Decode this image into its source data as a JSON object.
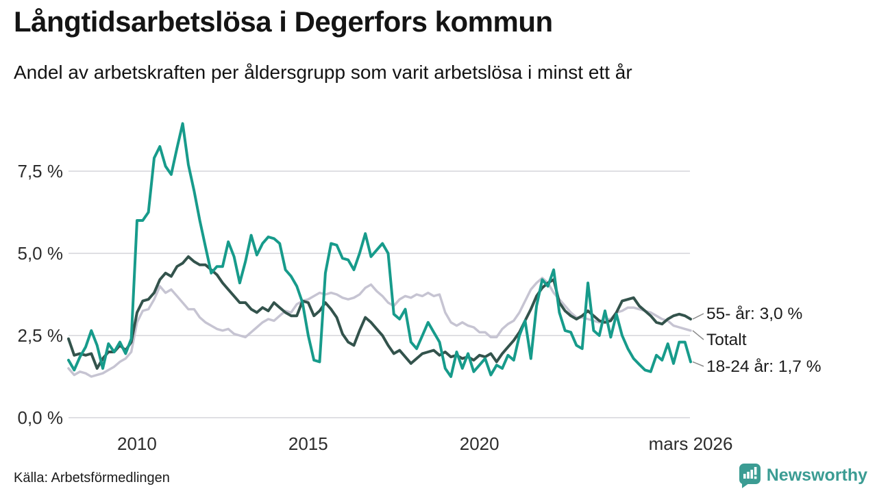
{
  "chart_data": {
    "type": "line",
    "title": "Långtidsarbetslösa i Degerfors kommun",
    "subtitle": "Andel av arbetskraften per åldersgrupp som varit arbetslösa i minst ett år",
    "source": "Källa: Arbetsförmedlingen",
    "x_range": [
      2008,
      2026.17
    ],
    "ylim": [
      0,
      9.2
    ],
    "grid": "horizontal",
    "background": "#ffffff",
    "gridline_color": "#dfdfe3",
    "tick_color": "#2c2c2c",
    "y_ticks": [
      {
        "value": 0,
        "label": "0,0 %"
      },
      {
        "value": 2.5,
        "label": "2,5 %"
      },
      {
        "value": 5,
        "label": "5,0 %"
      },
      {
        "value": 7.5,
        "label": "7,5 %"
      }
    ],
    "x_ticks": [
      {
        "year": 2010,
        "label": "2010"
      },
      {
        "year": 2015,
        "label": "2015"
      },
      {
        "year": 2020,
        "label": "2020"
      },
      {
        "year": 2026.17,
        "label": "mars 2026"
      }
    ],
    "legend_position": "end-of-line labels, right side",
    "series": [
      {
        "name": "Totalt",
        "end_label": "Totalt",
        "end_value": 2.65,
        "color": "#c6c4d2",
        "values": [
          1.5,
          1.3,
          1.4,
          1.35,
          1.25,
          1.3,
          1.35,
          1.45,
          1.55,
          1.7,
          1.8,
          2.0,
          2.9,
          3.25,
          3.3,
          3.6,
          4.0,
          3.8,
          3.9,
          3.7,
          3.5,
          3.3,
          3.3,
          3.05,
          2.9,
          2.8,
          2.7,
          2.65,
          2.7,
          2.55,
          2.5,
          2.45,
          2.6,
          2.75,
          2.9,
          3.0,
          2.95,
          3.1,
          3.25,
          3.2,
          3.45,
          3.55,
          3.6,
          3.7,
          3.8,
          3.75,
          3.8,
          3.75,
          3.65,
          3.6,
          3.65,
          3.75,
          3.95,
          4.05,
          3.85,
          3.7,
          3.5,
          3.4,
          3.6,
          3.7,
          3.65,
          3.75,
          3.7,
          3.8,
          3.7,
          3.75,
          3.2,
          2.9,
          2.8,
          2.9,
          2.8,
          2.75,
          2.6,
          2.6,
          2.45,
          2.45,
          2.7,
          2.85,
          2.95,
          3.2,
          3.55,
          3.9,
          4.1,
          4.25,
          4.1,
          3.8,
          3.6,
          3.4,
          3.2,
          3.05,
          3.05,
          3.0,
          2.95,
          2.9,
          3.0,
          3.0,
          3.2,
          3.25,
          3.35,
          3.35,
          3.3,
          3.25,
          3.2,
          3.1,
          3.0,
          2.95,
          2.8,
          2.75,
          2.7,
          2.65
        ]
      },
      {
        "name": "55- år",
        "end_label": "55- år: 3,0 %",
        "end_value": 3.0,
        "color": "#33534c",
        "values": [
          2.4,
          1.9,
          1.95,
          1.9,
          1.95,
          1.5,
          1.8,
          2.0,
          2.0,
          2.2,
          2.05,
          2.3,
          3.2,
          3.55,
          3.6,
          3.8,
          4.2,
          4.4,
          4.3,
          4.6,
          4.7,
          4.9,
          4.75,
          4.65,
          4.65,
          4.5,
          4.35,
          4.1,
          3.9,
          3.7,
          3.5,
          3.5,
          3.3,
          3.2,
          3.35,
          3.25,
          3.5,
          3.35,
          3.2,
          3.1,
          3.1,
          3.55,
          3.5,
          3.1,
          3.25,
          3.5,
          3.3,
          3.05,
          2.55,
          2.3,
          2.2,
          2.65,
          3.05,
          2.9,
          2.7,
          2.5,
          2.2,
          1.95,
          2.05,
          1.85,
          1.65,
          1.8,
          1.95,
          2.0,
          2.05,
          1.9,
          2.0,
          1.85,
          1.9,
          1.8,
          1.85,
          1.75,
          1.9,
          1.85,
          1.95,
          1.7,
          1.95,
          2.15,
          2.35,
          2.6,
          2.95,
          3.3,
          3.7,
          3.95,
          4.1,
          4.2,
          3.5,
          3.25,
          3.1,
          3.0,
          3.1,
          3.25,
          3.1,
          2.95,
          2.9,
          2.95,
          3.2,
          3.55,
          3.6,
          3.65,
          3.4,
          3.25,
          3.1,
          2.9,
          2.85,
          3.0,
          3.1,
          3.15,
          3.1,
          3.0
        ]
      },
      {
        "name": "18-24 år",
        "end_label": "18-24 år: 1,7 %",
        "end_value": 1.7,
        "color": "#179b8b",
        "values": [
          1.75,
          1.45,
          1.85,
          2.15,
          2.65,
          2.2,
          1.5,
          2.25,
          2.0,
          2.3,
          1.95,
          2.4,
          6.0,
          6.0,
          6.25,
          7.9,
          8.25,
          7.65,
          7.4,
          8.2,
          8.95,
          7.7,
          6.9,
          6.0,
          5.2,
          4.4,
          4.6,
          4.6,
          5.35,
          4.9,
          4.1,
          4.75,
          5.55,
          4.95,
          5.3,
          5.5,
          5.45,
          5.3,
          4.5,
          4.3,
          4.0,
          3.5,
          2.5,
          1.75,
          1.7,
          4.4,
          5.3,
          5.25,
          4.85,
          4.8,
          4.5,
          5.0,
          5.6,
          4.9,
          5.1,
          5.3,
          5.0,
          3.15,
          3.0,
          3.3,
          2.3,
          2.1,
          2.5,
          2.9,
          2.6,
          2.3,
          1.5,
          1.25,
          2.0,
          1.5,
          1.95,
          1.4,
          1.6,
          1.8,
          1.3,
          1.6,
          1.5,
          1.9,
          1.75,
          2.5,
          2.95,
          1.8,
          3.4,
          4.2,
          4.0,
          4.5,
          3.2,
          2.65,
          2.6,
          2.2,
          2.1,
          4.1,
          2.65,
          2.5,
          3.25,
          2.45,
          3.15,
          2.5,
          2.1,
          1.8,
          1.62,
          1.45,
          1.4,
          1.9,
          1.75,
          2.25,
          1.65,
          2.3,
          2.3,
          1.7
        ]
      }
    ]
  },
  "footer": {
    "brand": "Newsworthy",
    "brand_color": "#3b9c93"
  }
}
